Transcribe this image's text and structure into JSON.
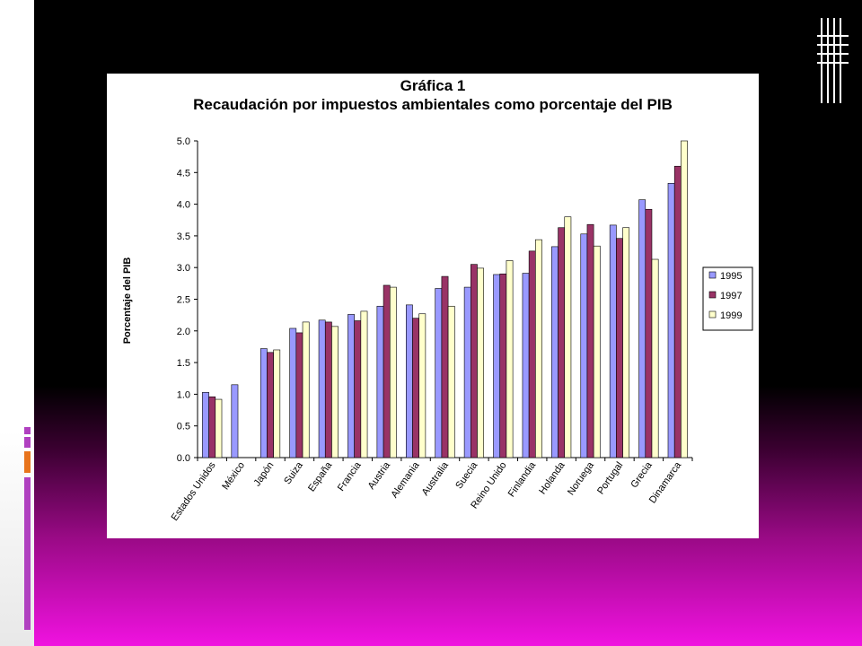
{
  "slide": {
    "background_top": "#000000",
    "background_bottom": "#f012e0",
    "accent_orange": "#e8741c",
    "accent_purple": "#b040c0"
  },
  "chart_data": {
    "type": "bar",
    "title": "Gráfica 1",
    "subtitle": "Recaudación por impuestos ambientales como porcentaje del PIB",
    "xlabel": "",
    "ylabel": "Porcentaje del PIB",
    "ylim": [
      0,
      5.0
    ],
    "yticks": [
      "0.0",
      "0.5",
      "1.0",
      "1.5",
      "2.0",
      "2.5",
      "3.0",
      "3.5",
      "4.0",
      "4.5",
      "5.0"
    ],
    "grid": false,
    "legend_position": "right",
    "categories": [
      "Estados Unidos",
      "México",
      "Japón",
      "Suiza",
      "España",
      "Francia",
      "Austria",
      "Alemania",
      "Australia",
      "Suecia",
      "Reino Unido",
      "Finlandia",
      "Holanda",
      "Noruega",
      "Portugal",
      "Grecia",
      "Dinamarca"
    ],
    "series": [
      {
        "name": "1995",
        "color": "#9999ff",
        "values": [
          1.03,
          1.15,
          1.72,
          2.04,
          2.17,
          2.26,
          2.39,
          2.41,
          2.67,
          2.69,
          2.89,
          2.91,
          3.33,
          3.53,
          3.67,
          4.07,
          4.33
        ]
      },
      {
        "name": "1997",
        "color": "#993366",
        "values": [
          0.96,
          null,
          1.66,
          1.97,
          2.14,
          2.16,
          2.72,
          2.2,
          2.86,
          3.05,
          2.9,
          3.26,
          3.63,
          3.68,
          3.46,
          3.92,
          4.6
        ]
      },
      {
        "name": "1999",
        "color": "#ffffcc",
        "values": [
          0.92,
          null,
          1.7,
          2.14,
          2.07,
          2.31,
          2.69,
          2.27,
          2.39,
          2.99,
          3.11,
          3.44,
          3.8,
          3.34,
          3.63,
          3.13,
          5.0
        ]
      }
    ]
  }
}
